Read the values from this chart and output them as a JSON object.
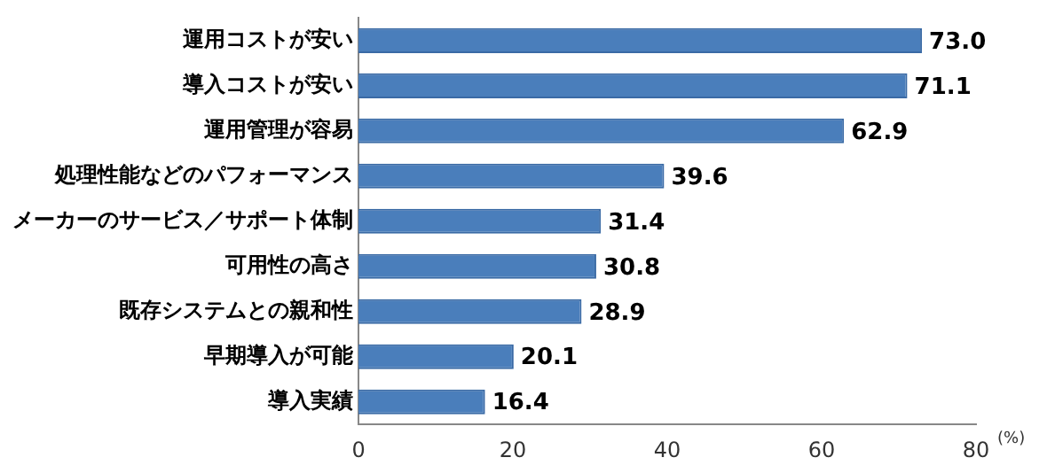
{
  "chart_data": {
    "type": "bar",
    "orientation": "horizontal",
    "categories": [
      "運用コストが安い",
      "導入コストが安い",
      "運用管理が容易",
      "処理性能などのパフォーマンス",
      "メーカーのサービス／サポート体制",
      "可用性の高さ",
      "既存システムとの親和性",
      "早期導入が可能",
      "導入実績"
    ],
    "values": [
      73.0,
      71.1,
      62.9,
      39.6,
      31.4,
      30.8,
      28.9,
      20.1,
      16.4
    ],
    "value_labels": [
      "73.0",
      "71.1",
      "62.9",
      "39.6",
      "31.4",
      "30.8",
      "28.9",
      "20.1",
      "16.4"
    ],
    "color": "#4a7ebb",
    "xlim": [
      0,
      80
    ],
    "xticks": [
      0,
      20,
      40,
      60,
      80
    ],
    "xlabel": "(%)",
    "grid": false,
    "legend": false
  }
}
